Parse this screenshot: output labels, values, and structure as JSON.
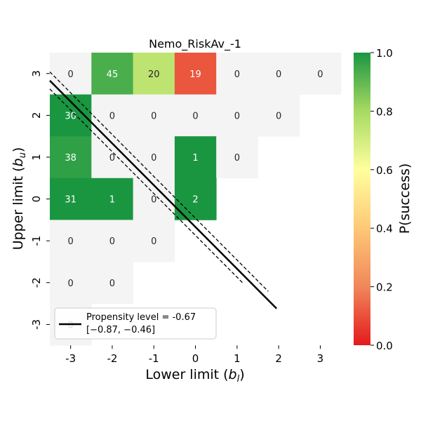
{
  "chart_data": {
    "type": "heatmap",
    "title": "Nemo_RiskAv_-1",
    "xlabel": "Lower limit (",
    "xlabel_var": "b",
    "xlabel_sub": "l",
    "ylabel": "Upper limit (",
    "ylabel_var": "b",
    "ylabel_sub": "u",
    "x_categories": [
      "-3",
      "-2",
      "-1",
      "0",
      "1",
      "2",
      "3"
    ],
    "y_categories": [
      "3",
      "2",
      "1",
      "0",
      "-1",
      "-2",
      "-3"
    ],
    "cells": [
      {
        "x": "-3",
        "y": "3",
        "count": 0,
        "p": null
      },
      {
        "x": "-2",
        "y": "3",
        "count": 45,
        "p": 0.93
      },
      {
        "x": "-1",
        "y": "3",
        "count": 20,
        "p": 0.75
      },
      {
        "x": "0",
        "y": "3",
        "count": 19,
        "p": 0.11
      },
      {
        "x": "1",
        "y": "3",
        "count": 0,
        "p": null
      },
      {
        "x": "2",
        "y": "3",
        "count": 0,
        "p": null
      },
      {
        "x": "3",
        "y": "3",
        "count": 0,
        "p": null
      },
      {
        "x": "-3",
        "y": "2",
        "count": 30,
        "p": 1.0
      },
      {
        "x": "-2",
        "y": "2",
        "count": 0,
        "p": null
      },
      {
        "x": "-1",
        "y": "2",
        "count": 0,
        "p": null
      },
      {
        "x": "0",
        "y": "2",
        "count": 0,
        "p": null
      },
      {
        "x": "1",
        "y": "2",
        "count": 0,
        "p": null
      },
      {
        "x": "2",
        "y": "2",
        "count": 0,
        "p": null
      },
      {
        "x": "-3",
        "y": "1",
        "count": 38,
        "p": 0.97
      },
      {
        "x": "-2",
        "y": "1",
        "count": 0,
        "p": null
      },
      {
        "x": "-1",
        "y": "1",
        "count": 0,
        "p": null
      },
      {
        "x": "0",
        "y": "1",
        "count": 1,
        "p": 1.0
      },
      {
        "x": "1",
        "y": "1",
        "count": 0,
        "p": null
      },
      {
        "x": "-3",
        "y": "0",
        "count": 31,
        "p": 1.0
      },
      {
        "x": "-2",
        "y": "0",
        "count": 1,
        "p": 1.0
      },
      {
        "x": "-1",
        "y": "0",
        "count": 0,
        "p": null
      },
      {
        "x": "0",
        "y": "0",
        "count": 2,
        "p": 1.0
      },
      {
        "x": "-3",
        "y": "-1",
        "count": 0,
        "p": null
      },
      {
        "x": "-2",
        "y": "-1",
        "count": 0,
        "p": null
      },
      {
        "x": "-1",
        "y": "-1",
        "count": 0,
        "p": null
      },
      {
        "x": "-3",
        "y": "-2",
        "count": 0,
        "p": null
      },
      {
        "x": "-2",
        "y": "-2",
        "count": 0,
        "p": null
      },
      {
        "x": "-3",
        "y": "-3",
        "count": 0,
        "p": null
      }
    ],
    "empty_color": "#f4f4f4",
    "colorbar": {
      "label": "P(success)",
      "range": [
        0.0,
        1.0
      ],
      "ticks": [
        "0.0",
        "0.2",
        "0.4",
        "0.6",
        "0.8",
        "1.0"
      ],
      "colors": [
        "#e31a1c",
        "#f0875a",
        "#fec877",
        "#ffff9f",
        "#a7da62",
        "#1a9641"
      ]
    },
    "propensity_lines": {
      "intercept": -0.67,
      "lower": -0.87,
      "upper": -0.46,
      "x_range": [
        -3.5,
        1.95
      ],
      "main_color": "#000000"
    },
    "legend": {
      "location": "lower-left",
      "line1": "Propensity level = -0.67",
      "line2": "[−0.87, −0.46]"
    }
  }
}
